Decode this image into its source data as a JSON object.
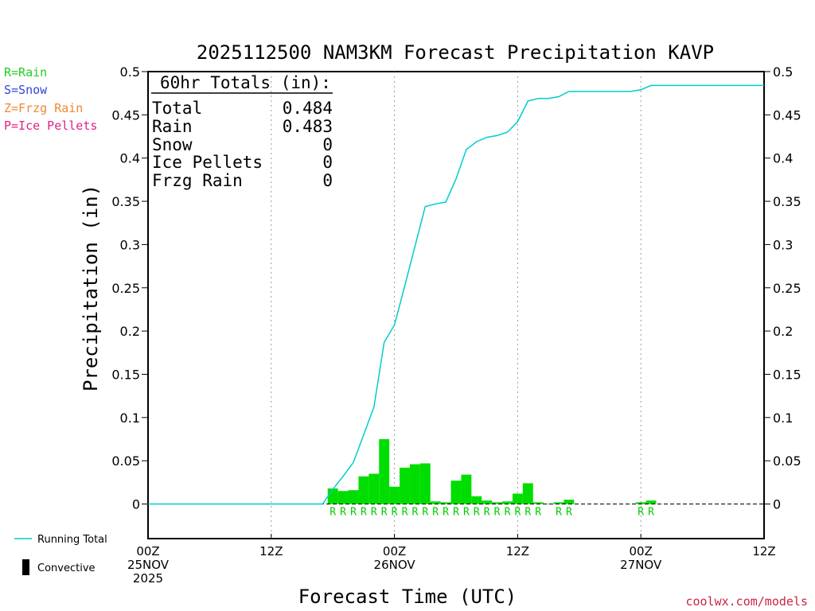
{
  "chart_data": {
    "type": "bar",
    "title": "2025112500 NAM3KM Forecast Precipitation KAVP",
    "xlabel": "Forecast Time (UTC)",
    "ylabel": "Precipitation (in)",
    "ylim": [
      -0.04,
      0.5
    ],
    "xlim_hours": [
      0,
      60
    ],
    "y_ticks": [
      "0.5",
      "0.45",
      "0.4",
      "0.35",
      "0.3",
      "0.25",
      "0.2",
      "0.15",
      "0.1",
      "0.05",
      "0"
    ],
    "y_tick_values": [
      0.5,
      0.45,
      0.4,
      0.35,
      0.3,
      0.25,
      0.2,
      0.15,
      0.1,
      0.05,
      0
    ],
    "x_ticks": [
      {
        "hour": 0,
        "line1": "00Z",
        "line2": "25NOV",
        "line3": "2025"
      },
      {
        "hour": 12,
        "line1": "12Z",
        "line2": "",
        "line3": ""
      },
      {
        "hour": 24,
        "line1": "00Z",
        "line2": "26NOV",
        "line3": ""
      },
      {
        "hour": 36,
        "line1": "12Z",
        "line2": "",
        "line3": ""
      },
      {
        "hour": 48,
        "line1": "00Z",
        "line2": "27NOV",
        "line3": ""
      },
      {
        "hour": 60,
        "line1": "12Z",
        "line2": "",
        "line3": ""
      }
    ],
    "bars": {
      "hours": [
        18,
        19,
        20,
        21,
        22,
        23,
        24,
        25,
        26,
        27,
        28,
        29,
        30,
        31,
        32,
        33,
        34,
        35,
        36,
        37,
        38,
        39,
        40,
        41,
        48,
        49
      ],
      "values": [
        0.018,
        0.015,
        0.016,
        0.032,
        0.035,
        0.075,
        0.02,
        0.042,
        0.046,
        0.047,
        0.003,
        0.002,
        0.027,
        0.034,
        0.009,
        0.004,
        0.002,
        0.003,
        0.012,
        0.024,
        0.002,
        0.0005,
        0.002,
        0.005,
        0.002,
        0.004
      ],
      "color": "#00dd00"
    },
    "running_total": {
      "name": "Running Total",
      "color": "#00cccc",
      "hours": [
        0,
        17,
        18,
        19,
        20,
        21,
        22,
        23,
        24,
        25,
        26,
        27,
        28,
        29,
        30,
        31,
        32,
        33,
        34,
        35,
        36,
        37,
        38,
        39,
        40,
        41,
        42,
        43,
        44,
        45,
        46,
        47,
        48,
        49,
        50,
        51,
        52,
        53,
        54,
        55,
        56,
        57,
        58,
        59,
        60
      ],
      "values": [
        0,
        0,
        0.017,
        0.032,
        0.048,
        0.08,
        0.112,
        0.187,
        0.207,
        0.252,
        0.298,
        0.344,
        0.347,
        0.349,
        0.376,
        0.41,
        0.419,
        0.424,
        0.426,
        0.43,
        0.442,
        0.466,
        0.469,
        0.469,
        0.471,
        0.477,
        0.477,
        0.477,
        0.477,
        0.477,
        0.477,
        0.477,
        0.479,
        0.484,
        0.484,
        0.484,
        0.484,
        0.484,
        0.484,
        0.484,
        0.484,
        0.484,
        0.484,
        0.484,
        0.484
      ]
    },
    "precip_type_markers": {
      "hours": [
        18,
        19,
        20,
        21,
        22,
        23,
        24,
        25,
        26,
        27,
        28,
        29,
        30,
        31,
        32,
        33,
        34,
        35,
        36,
        37,
        38,
        40,
        41,
        48,
        49
      ],
      "labels": [
        "R",
        "R",
        "R",
        "R",
        "R",
        "R",
        "R",
        "R",
        "R",
        "R",
        "R",
        "R",
        "R",
        "R",
        "R",
        "R",
        "R",
        "R",
        "R",
        "R",
        "R",
        "R",
        "R",
        "R",
        "R"
      ],
      "color": "#00cc00"
    }
  },
  "totals_box": {
    "heading": "60hr Totals (in):",
    "rows": [
      {
        "label": "Total",
        "value": "0.484"
      },
      {
        "label": "Rain",
        "value": "0.483"
      },
      {
        "label": "Snow",
        "value": "0"
      },
      {
        "label": "Ice Pellets",
        "value": "0"
      },
      {
        "label": "Frzg Rain",
        "value": "0"
      }
    ]
  },
  "type_legend": [
    {
      "text": "R=Rain",
      "color": "#22cc22"
    },
    {
      "text": "S=Snow",
      "color": "#3344dd"
    },
    {
      "text": "Z=Frzg Rain",
      "color": "#ee8833"
    },
    {
      "text": "P=Ice Pellets",
      "color": "#dd2288"
    }
  ],
  "bottom_legend": {
    "running_total": "Running Total",
    "convective": "Convective"
  },
  "credit": {
    "text": "coolwx.com/models",
    "color": "#cc2244"
  }
}
